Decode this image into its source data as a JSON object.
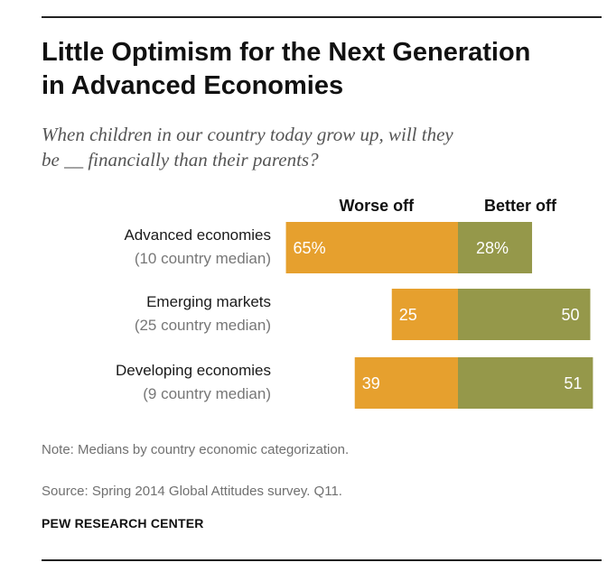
{
  "title_lines": [
    "Little Optimism for the Next Generation",
    "in Advanced Economies"
  ],
  "subtitle_lines": [
    "When children in our country today grow up, will they",
    "be __ financially than their parents?"
  ],
  "note": "Note: Medians by country economic categorization.",
  "source": "Source: Spring 2014 Global Attitudes survey. Q11.",
  "brand": "PEW RESEARCH CENTER",
  "colors": {
    "worse": "#E6A02E",
    "better": "#95984A",
    "label_main": "#1a1a1a",
    "label_sub": "#777777"
  },
  "chart_data": {
    "type": "bar",
    "orientation": "horizontal",
    "stacking": "diverging",
    "categories": [
      "Advanced economies",
      "Emerging markets",
      "Developing economies"
    ],
    "category_sublabels": [
      "(10 country median)",
      "(25 country median)",
      "(9 country median)"
    ],
    "series": [
      {
        "name": "Worse off",
        "values": [
          65,
          25,
          39
        ],
        "value_labels": [
          "65%",
          "25",
          "39"
        ]
      },
      {
        "name": "Better off",
        "values": [
          28,
          50,
          51
        ],
        "value_labels": [
          "28%",
          "50",
          "51"
        ]
      }
    ],
    "unit": "%"
  }
}
